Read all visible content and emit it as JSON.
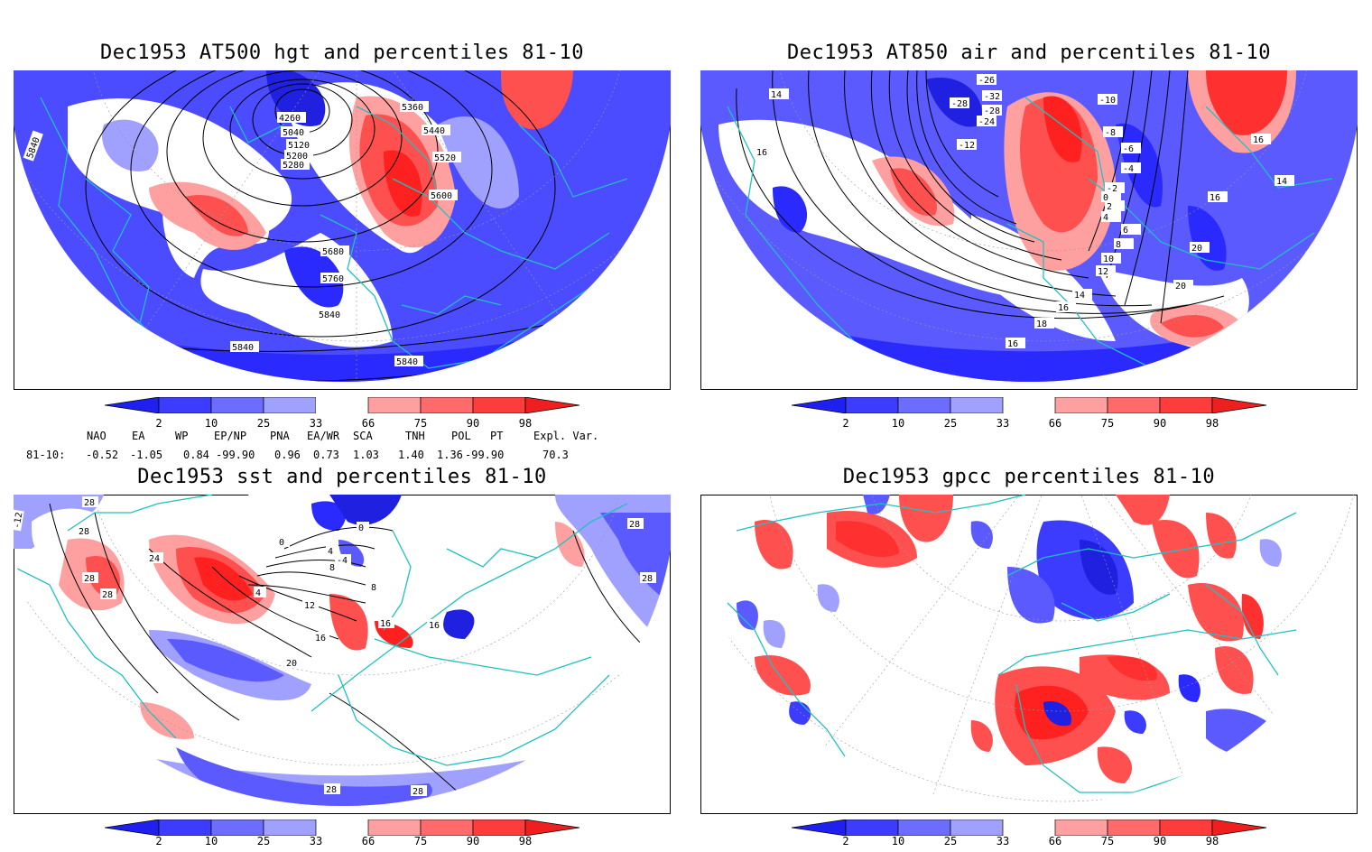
{
  "panels": [
    {
      "title": "Dec1953 AT500 hgt and percentiles 81-10",
      "contour_labels": [
        "4260",
        "5040",
        "5120",
        "5200",
        "5280",
        "5360",
        "5440",
        "5520",
        "5600",
        "5680",
        "5760",
        "5840",
        "5840",
        "5840",
        "5840"
      ]
    },
    {
      "title": "Dec1953 AT850 air and percentiles 81-10",
      "contour_labels": [
        "-28",
        "-26",
        "-32",
        "-28",
        "-24",
        "-12",
        "-10",
        "-8",
        "-6",
        "-4",
        "-2",
        "0",
        "2",
        "4",
        "6",
        "8",
        "10",
        "12",
        "14",
        "16",
        "18",
        "20",
        "16",
        "16",
        "14",
        "16",
        "20",
        "16",
        "14"
      ]
    },
    {
      "title": "Dec1953 sst and percentiles 81-10",
      "contour_labels": [
        "28",
        "28",
        "24",
        "28",
        "28",
        "0",
        "0",
        "-4",
        "4",
        "8",
        "8",
        "4",
        "12",
        "16",
        "16",
        "16",
        "20",
        "28",
        "28",
        "28",
        "28",
        "-12"
      ]
    },
    {
      "title": "Dec1953 gpcc percentiles 81-10",
      "contour_labels": []
    }
  ],
  "colorbar": {
    "ticks": [
      "2",
      "10",
      "25",
      "33",
      "66",
      "75",
      "90",
      "98"
    ],
    "colors": [
      "#1f1ff0",
      "#3c3cff",
      "#6c6cff",
      "#a0a0ff",
      "#ffffff",
      "#ffa0a0",
      "#ff6a6a",
      "#ff3c3c",
      "#f01f1f"
    ]
  },
  "indices": {
    "headers": [
      "NAO",
      "EA",
      "WP",
      "EP/NP",
      "PNA",
      "EA/WR",
      "SCA",
      "TNH",
      "POL",
      "PT",
      "Expl. Var."
    ],
    "row_label": "81-10:",
    "values": [
      "-0.52",
      "-1.05",
      "0.84",
      "-99.90",
      "0.96",
      "0.73",
      "1.03",
      "1.40",
      "1.36",
      "-99.90",
      "70.3"
    ]
  },
  "colors": {
    "coastline": "#20c0c0",
    "strong_blue": "#2828ff",
    "mid_blue": "#5a5aff",
    "light_blue": "#a0a0ff",
    "light_red": "#ffa0a0",
    "mid_red": "#ff5050",
    "strong_red": "#ff2020"
  }
}
